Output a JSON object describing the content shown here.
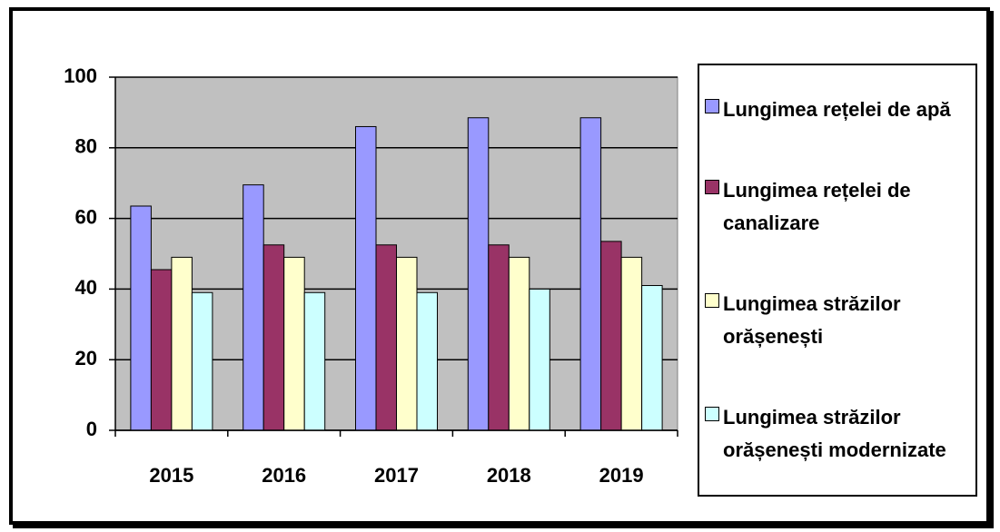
{
  "chart_data": {
    "type": "bar",
    "categories": [
      "2015",
      "2016",
      "2017",
      "2018",
      "2019"
    ],
    "series": [
      {
        "name": "Lungimea rețelei de apă",
        "color": "#9999ff",
        "values": [
          63.5,
          69.5,
          86,
          88.5,
          88.5
        ]
      },
      {
        "name": "Lungimea rețelei de canalizare",
        "color": "#993366",
        "values": [
          45.5,
          52.5,
          52.5,
          52.5,
          53.5
        ]
      },
      {
        "name": "Lungimea străzilor orășenești",
        "color": "#ffffcc",
        "values": [
          49,
          49,
          49,
          49,
          49
        ]
      },
      {
        "name": "Lungimea străzilor orășenești modernizate",
        "color": "#ccffff",
        "values": [
          39,
          39,
          39,
          40,
          41
        ]
      }
    ],
    "ylim": [
      0,
      100
    ],
    "yticks": [
      0,
      20,
      40,
      60,
      80,
      100
    ],
    "grid": true,
    "plot_background": "#c0c0c0",
    "legend": "right"
  }
}
